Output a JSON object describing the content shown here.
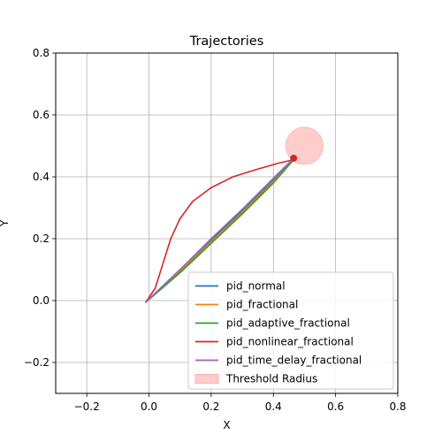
{
  "chart_data": {
    "type": "line",
    "title": "Trajectories",
    "xlabel": "X",
    "ylabel": "Y",
    "xlim": [
      -0.3,
      0.8
    ],
    "ylim": [
      -0.3,
      0.8
    ],
    "xticks": [
      -0.2,
      0.0,
      0.2,
      0.4,
      0.6,
      0.8
    ],
    "yticks": [
      -0.2,
      0.0,
      0.2,
      0.4,
      0.6,
      0.8
    ],
    "xtick_labels": [
      "−0.2",
      "0.0",
      "0.2",
      "0.4",
      "0.6",
      "0.8"
    ],
    "ytick_labels": [
      "−0.2",
      "0.0",
      "0.2",
      "0.4",
      "0.6",
      "0.8"
    ],
    "grid": true,
    "legend_position": "lower right",
    "series": [
      {
        "name": "pid_normal",
        "color": "#1f77b4",
        "x": [
          -0.01,
          0.1,
          0.2,
          0.3,
          0.4,
          0.465
        ],
        "y": [
          -0.005,
          0.1,
          0.195,
          0.29,
          0.39,
          0.455
        ]
      },
      {
        "name": "pid_fractional",
        "color": "#ff7f0e",
        "x": [
          -0.01,
          0.1,
          0.2,
          0.3,
          0.4,
          0.465
        ],
        "y": [
          -0.005,
          0.095,
          0.19,
          0.285,
          0.385,
          0.455
        ]
      },
      {
        "name": "pid_adaptive_fractional",
        "color": "#2ca02c",
        "x": [
          -0.01,
          0.1,
          0.2,
          0.3,
          0.4,
          0.465
        ],
        "y": [
          -0.005,
          0.09,
          0.185,
          0.28,
          0.38,
          0.455
        ]
      },
      {
        "name": "pid_nonlinear_fractional",
        "color": "#d62728",
        "x": [
          -0.01,
          0.02,
          0.045,
          0.07,
          0.1,
          0.14,
          0.2,
          0.27,
          0.35,
          0.42,
          0.465
        ],
        "y": [
          -0.005,
          0.04,
          0.12,
          0.2,
          0.265,
          0.32,
          0.365,
          0.4,
          0.425,
          0.445,
          0.455
        ]
      },
      {
        "name": "pid_time_delay_fractional",
        "color": "#9467bd",
        "x": [
          -0.01,
          0.1,
          0.2,
          0.3,
          0.4,
          0.465
        ],
        "y": [
          -0.005,
          0.1,
          0.2,
          0.295,
          0.395,
          0.46
        ]
      }
    ],
    "threshold": {
      "name": "Threshold Radius",
      "center": [
        0.5,
        0.5
      ],
      "radius": 0.06,
      "color": "#ff9999"
    },
    "endpoint": {
      "x": 0.465,
      "y": 0.46,
      "color": "#d62728"
    }
  }
}
